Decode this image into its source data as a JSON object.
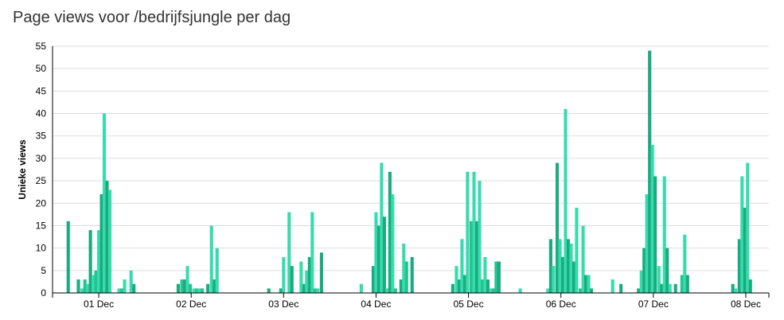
{
  "chart_data": {
    "type": "bar",
    "title": "Page views voor /bedrijfsjungle per dag",
    "xlabel": "",
    "ylabel": "Unieke views",
    "ylim": [
      0,
      55
    ],
    "yticks": [
      0,
      5,
      10,
      15,
      20,
      25,
      30,
      35,
      40,
      45,
      50,
      55
    ],
    "grid": true,
    "colors": {
      "light": "#36dcad",
      "dark": "#1aac7f",
      "mid": "#25c292"
    },
    "x_tick_labels": [
      "01 Dec",
      "02 Dec",
      "03 Dec",
      "04 Dec",
      "05 Dec",
      "06 Dec",
      "07 Dec",
      "08 Dec"
    ],
    "x_tick_days": [
      0,
      1,
      2,
      3,
      4,
      5,
      6,
      7
    ],
    "x_domain_days": [
      -0.5,
      7.25
    ],
    "bar_width_hours": 0.85,
    "bars": [
      {
        "day": -0.33,
        "value": 16,
        "c": "dark"
      },
      {
        "day": -0.22,
        "value": 3,
        "c": "dark"
      },
      {
        "day": -0.18,
        "value": 1,
        "c": "light"
      },
      {
        "day": -0.15,
        "value": 3,
        "c": "mid"
      },
      {
        "day": -0.12,
        "value": 2,
        "c": "light"
      },
      {
        "day": -0.09,
        "value": 14,
        "c": "dark"
      },
      {
        "day": -0.06,
        "value": 4,
        "c": "light"
      },
      {
        "day": -0.03,
        "value": 5,
        "c": "mid"
      },
      {
        "day": 0.0,
        "value": 14,
        "c": "light"
      },
      {
        "day": 0.03,
        "value": 22,
        "c": "dark"
      },
      {
        "day": 0.06,
        "value": 40,
        "c": "light"
      },
      {
        "day": 0.09,
        "value": 25,
        "c": "dark"
      },
      {
        "day": 0.12,
        "value": 23,
        "c": "light"
      },
      {
        "day": 0.22,
        "value": 1,
        "c": "light"
      },
      {
        "day": 0.25,
        "value": 1,
        "c": "mid"
      },
      {
        "day": 0.28,
        "value": 3,
        "c": "light"
      },
      {
        "day": 0.35,
        "value": 5,
        "c": "light"
      },
      {
        "day": 0.38,
        "value": 2,
        "c": "dark"
      },
      {
        "day": 0.86,
        "value": 2,
        "c": "dark"
      },
      {
        "day": 0.9,
        "value": 3,
        "c": "mid"
      },
      {
        "day": 0.93,
        "value": 3,
        "c": "dark"
      },
      {
        "day": 0.96,
        "value": 6,
        "c": "light"
      },
      {
        "day": 0.99,
        "value": 2,
        "c": "mid"
      },
      {
        "day": 1.03,
        "value": 1,
        "c": "light"
      },
      {
        "day": 1.06,
        "value": 1,
        "c": "mid"
      },
      {
        "day": 1.09,
        "value": 1,
        "c": "light"
      },
      {
        "day": 1.12,
        "value": 1,
        "c": "mid"
      },
      {
        "day": 1.18,
        "value": 2,
        "c": "dark"
      },
      {
        "day": 1.22,
        "value": 15,
        "c": "light"
      },
      {
        "day": 1.25,
        "value": 3,
        "c": "dark"
      },
      {
        "day": 1.28,
        "value": 10,
        "c": "light"
      },
      {
        "day": 1.84,
        "value": 1,
        "c": "dark"
      },
      {
        "day": 1.97,
        "value": 1,
        "c": "dark"
      },
      {
        "day": 2.0,
        "value": 8,
        "c": "light"
      },
      {
        "day": 2.06,
        "value": 18,
        "c": "light"
      },
      {
        "day": 2.09,
        "value": 6,
        "c": "dark"
      },
      {
        "day": 2.19,
        "value": 7,
        "c": "light"
      },
      {
        "day": 2.22,
        "value": 2,
        "c": "dark"
      },
      {
        "day": 2.25,
        "value": 5,
        "c": "light"
      },
      {
        "day": 2.28,
        "value": 8,
        "c": "dark"
      },
      {
        "day": 2.31,
        "value": 18,
        "c": "light"
      },
      {
        "day": 2.34,
        "value": 1,
        "c": "mid"
      },
      {
        "day": 2.37,
        "value": 1,
        "c": "light"
      },
      {
        "day": 2.41,
        "value": 9,
        "c": "dark"
      },
      {
        "day": 2.84,
        "value": 2,
        "c": "light"
      },
      {
        "day": 2.97,
        "value": 6,
        "c": "dark"
      },
      {
        "day": 3.0,
        "value": 18,
        "c": "light"
      },
      {
        "day": 3.03,
        "value": 15,
        "c": "dark"
      },
      {
        "day": 3.06,
        "value": 29,
        "c": "light"
      },
      {
        "day": 3.09,
        "value": 17,
        "c": "dark"
      },
      {
        "day": 3.12,
        "value": 1,
        "c": "light"
      },
      {
        "day": 3.15,
        "value": 27,
        "c": "dark"
      },
      {
        "day": 3.18,
        "value": 22,
        "c": "light"
      },
      {
        "day": 3.21,
        "value": 1,
        "c": "mid"
      },
      {
        "day": 3.27,
        "value": 3,
        "c": "dark"
      },
      {
        "day": 3.3,
        "value": 11,
        "c": "light"
      },
      {
        "day": 3.33,
        "value": 7,
        "c": "mid"
      },
      {
        "day": 3.39,
        "value": 8,
        "c": "dark"
      },
      {
        "day": 3.83,
        "value": 2,
        "c": "dark"
      },
      {
        "day": 3.87,
        "value": 6,
        "c": "light"
      },
      {
        "day": 3.9,
        "value": 3,
        "c": "dark"
      },
      {
        "day": 3.93,
        "value": 12,
        "c": "light"
      },
      {
        "day": 3.96,
        "value": 4,
        "c": "dark"
      },
      {
        "day": 3.99,
        "value": 27,
        "c": "light"
      },
      {
        "day": 4.03,
        "value": 16,
        "c": "mid"
      },
      {
        "day": 4.06,
        "value": 27,
        "c": "light"
      },
      {
        "day": 4.09,
        "value": 16,
        "c": "dark"
      },
      {
        "day": 4.12,
        "value": 25,
        "c": "light"
      },
      {
        "day": 4.15,
        "value": 3,
        "c": "mid"
      },
      {
        "day": 4.18,
        "value": 8,
        "c": "light"
      },
      {
        "day": 4.21,
        "value": 3,
        "c": "dark"
      },
      {
        "day": 4.24,
        "value": 1,
        "c": "light"
      },
      {
        "day": 4.27,
        "value": 1,
        "c": "mid"
      },
      {
        "day": 4.3,
        "value": 7,
        "c": "mid"
      },
      {
        "day": 4.33,
        "value": 7,
        "c": "dark"
      },
      {
        "day": 4.56,
        "value": 1,
        "c": "light"
      },
      {
        "day": 4.86,
        "value": 1,
        "c": "light"
      },
      {
        "day": 4.89,
        "value": 12,
        "c": "dark"
      },
      {
        "day": 4.92,
        "value": 6,
        "c": "light"
      },
      {
        "day": 4.96,
        "value": 29,
        "c": "dark"
      },
      {
        "day": 4.99,
        "value": 12,
        "c": "light"
      },
      {
        "day": 5.02,
        "value": 8,
        "c": "dark"
      },
      {
        "day": 5.05,
        "value": 41,
        "c": "light"
      },
      {
        "day": 5.08,
        "value": 12,
        "c": "dark"
      },
      {
        "day": 5.11,
        "value": 11,
        "c": "light"
      },
      {
        "day": 5.14,
        "value": 7,
        "c": "dark"
      },
      {
        "day": 5.17,
        "value": 19,
        "c": "light"
      },
      {
        "day": 5.21,
        "value": 1,
        "c": "mid"
      },
      {
        "day": 5.24,
        "value": 15,
        "c": "light"
      },
      {
        "day": 5.27,
        "value": 4,
        "c": "dark"
      },
      {
        "day": 5.3,
        "value": 4,
        "c": "light"
      },
      {
        "day": 5.33,
        "value": 1,
        "c": "dark"
      },
      {
        "day": 5.56,
        "value": 3,
        "c": "light"
      },
      {
        "day": 5.65,
        "value": 2,
        "c": "dark"
      },
      {
        "day": 5.84,
        "value": 1,
        "c": "dark"
      },
      {
        "day": 5.87,
        "value": 5,
        "c": "light"
      },
      {
        "day": 5.9,
        "value": 10,
        "c": "dark"
      },
      {
        "day": 5.93,
        "value": 22,
        "c": "light"
      },
      {
        "day": 5.96,
        "value": 54,
        "c": "dark"
      },
      {
        "day": 5.99,
        "value": 33,
        "c": "light"
      },
      {
        "day": 6.02,
        "value": 26,
        "c": "dark"
      },
      {
        "day": 6.06,
        "value": 6,
        "c": "light"
      },
      {
        "day": 6.09,
        "value": 2,
        "c": "dark"
      },
      {
        "day": 6.12,
        "value": 26,
        "c": "light"
      },
      {
        "day": 6.15,
        "value": 10,
        "c": "dark"
      },
      {
        "day": 6.18,
        "value": 2,
        "c": "light"
      },
      {
        "day": 6.24,
        "value": 2,
        "c": "dark"
      },
      {
        "day": 6.31,
        "value": 4,
        "c": "mid"
      },
      {
        "day": 6.34,
        "value": 13,
        "c": "light"
      },
      {
        "day": 6.37,
        "value": 4,
        "c": "dark"
      },
      {
        "day": 6.86,
        "value": 2,
        "c": "dark"
      },
      {
        "day": 6.89,
        "value": 1,
        "c": "light"
      },
      {
        "day": 6.93,
        "value": 12,
        "c": "dark"
      },
      {
        "day": 6.96,
        "value": 26,
        "c": "light"
      },
      {
        "day": 6.99,
        "value": 19,
        "c": "dark"
      },
      {
        "day": 7.02,
        "value": 29,
        "c": "light"
      },
      {
        "day": 7.05,
        "value": 3,
        "c": "dark"
      }
    ]
  }
}
